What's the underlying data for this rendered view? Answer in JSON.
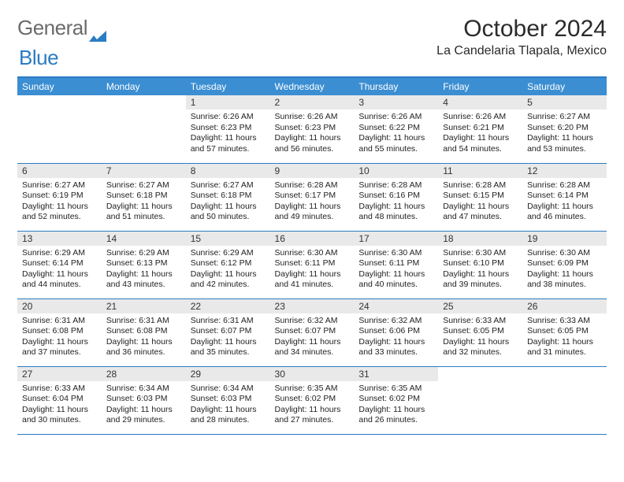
{
  "logo": {
    "part1": "General",
    "part2": "Blue"
  },
  "title": "October 2024",
  "location": "La Candelaria Tlapala, Mexico",
  "colors": {
    "brand_blue": "#3b8ed2",
    "rule_blue": "#2c7cc4",
    "daynum_bg": "#e9e9e9",
    "text": "#2b2b2b",
    "body_text": "#222222",
    "page_bg": "#ffffff"
  },
  "typography": {
    "title_fontsize": 30,
    "location_fontsize": 16,
    "header_fontsize": 12,
    "daynum_fontsize": 12,
    "body_fontsize": 10.5
  },
  "calendar": {
    "type": "table",
    "day_headers": [
      "Sunday",
      "Monday",
      "Tuesday",
      "Wednesday",
      "Thursday",
      "Friday",
      "Saturday"
    ],
    "weeks": [
      [
        null,
        null,
        {
          "n": "1",
          "sunrise": "6:26 AM",
          "sunset": "6:23 PM",
          "daylight": "11 hours and 57 minutes."
        },
        {
          "n": "2",
          "sunrise": "6:26 AM",
          "sunset": "6:23 PM",
          "daylight": "11 hours and 56 minutes."
        },
        {
          "n": "3",
          "sunrise": "6:26 AM",
          "sunset": "6:22 PM",
          "daylight": "11 hours and 55 minutes."
        },
        {
          "n": "4",
          "sunrise": "6:26 AM",
          "sunset": "6:21 PM",
          "daylight": "11 hours and 54 minutes."
        },
        {
          "n": "5",
          "sunrise": "6:27 AM",
          "sunset": "6:20 PM",
          "daylight": "11 hours and 53 minutes."
        }
      ],
      [
        {
          "n": "6",
          "sunrise": "6:27 AM",
          "sunset": "6:19 PM",
          "daylight": "11 hours and 52 minutes."
        },
        {
          "n": "7",
          "sunrise": "6:27 AM",
          "sunset": "6:18 PM",
          "daylight": "11 hours and 51 minutes."
        },
        {
          "n": "8",
          "sunrise": "6:27 AM",
          "sunset": "6:18 PM",
          "daylight": "11 hours and 50 minutes."
        },
        {
          "n": "9",
          "sunrise": "6:28 AM",
          "sunset": "6:17 PM",
          "daylight": "11 hours and 49 minutes."
        },
        {
          "n": "10",
          "sunrise": "6:28 AM",
          "sunset": "6:16 PM",
          "daylight": "11 hours and 48 minutes."
        },
        {
          "n": "11",
          "sunrise": "6:28 AM",
          "sunset": "6:15 PM",
          "daylight": "11 hours and 47 minutes."
        },
        {
          "n": "12",
          "sunrise": "6:28 AM",
          "sunset": "6:14 PM",
          "daylight": "11 hours and 46 minutes."
        }
      ],
      [
        {
          "n": "13",
          "sunrise": "6:29 AM",
          "sunset": "6:14 PM",
          "daylight": "11 hours and 44 minutes."
        },
        {
          "n": "14",
          "sunrise": "6:29 AM",
          "sunset": "6:13 PM",
          "daylight": "11 hours and 43 minutes."
        },
        {
          "n": "15",
          "sunrise": "6:29 AM",
          "sunset": "6:12 PM",
          "daylight": "11 hours and 42 minutes."
        },
        {
          "n": "16",
          "sunrise": "6:30 AM",
          "sunset": "6:11 PM",
          "daylight": "11 hours and 41 minutes."
        },
        {
          "n": "17",
          "sunrise": "6:30 AM",
          "sunset": "6:11 PM",
          "daylight": "11 hours and 40 minutes."
        },
        {
          "n": "18",
          "sunrise": "6:30 AM",
          "sunset": "6:10 PM",
          "daylight": "11 hours and 39 minutes."
        },
        {
          "n": "19",
          "sunrise": "6:30 AM",
          "sunset": "6:09 PM",
          "daylight": "11 hours and 38 minutes."
        }
      ],
      [
        {
          "n": "20",
          "sunrise": "6:31 AM",
          "sunset": "6:08 PM",
          "daylight": "11 hours and 37 minutes."
        },
        {
          "n": "21",
          "sunrise": "6:31 AM",
          "sunset": "6:08 PM",
          "daylight": "11 hours and 36 minutes."
        },
        {
          "n": "22",
          "sunrise": "6:31 AM",
          "sunset": "6:07 PM",
          "daylight": "11 hours and 35 minutes."
        },
        {
          "n": "23",
          "sunrise": "6:32 AM",
          "sunset": "6:07 PM",
          "daylight": "11 hours and 34 minutes."
        },
        {
          "n": "24",
          "sunrise": "6:32 AM",
          "sunset": "6:06 PM",
          "daylight": "11 hours and 33 minutes."
        },
        {
          "n": "25",
          "sunrise": "6:33 AM",
          "sunset": "6:05 PM",
          "daylight": "11 hours and 32 minutes."
        },
        {
          "n": "26",
          "sunrise": "6:33 AM",
          "sunset": "6:05 PM",
          "daylight": "11 hours and 31 minutes."
        }
      ],
      [
        {
          "n": "27",
          "sunrise": "6:33 AM",
          "sunset": "6:04 PM",
          "daylight": "11 hours and 30 minutes."
        },
        {
          "n": "28",
          "sunrise": "6:34 AM",
          "sunset": "6:03 PM",
          "daylight": "11 hours and 29 minutes."
        },
        {
          "n": "29",
          "sunrise": "6:34 AM",
          "sunset": "6:03 PM",
          "daylight": "11 hours and 28 minutes."
        },
        {
          "n": "30",
          "sunrise": "6:35 AM",
          "sunset": "6:02 PM",
          "daylight": "11 hours and 27 minutes."
        },
        {
          "n": "31",
          "sunrise": "6:35 AM",
          "sunset": "6:02 PM",
          "daylight": "11 hours and 26 minutes."
        },
        null,
        null
      ]
    ],
    "labels": {
      "sunrise": "Sunrise:",
      "sunset": "Sunset:",
      "daylight": "Daylight:"
    }
  }
}
